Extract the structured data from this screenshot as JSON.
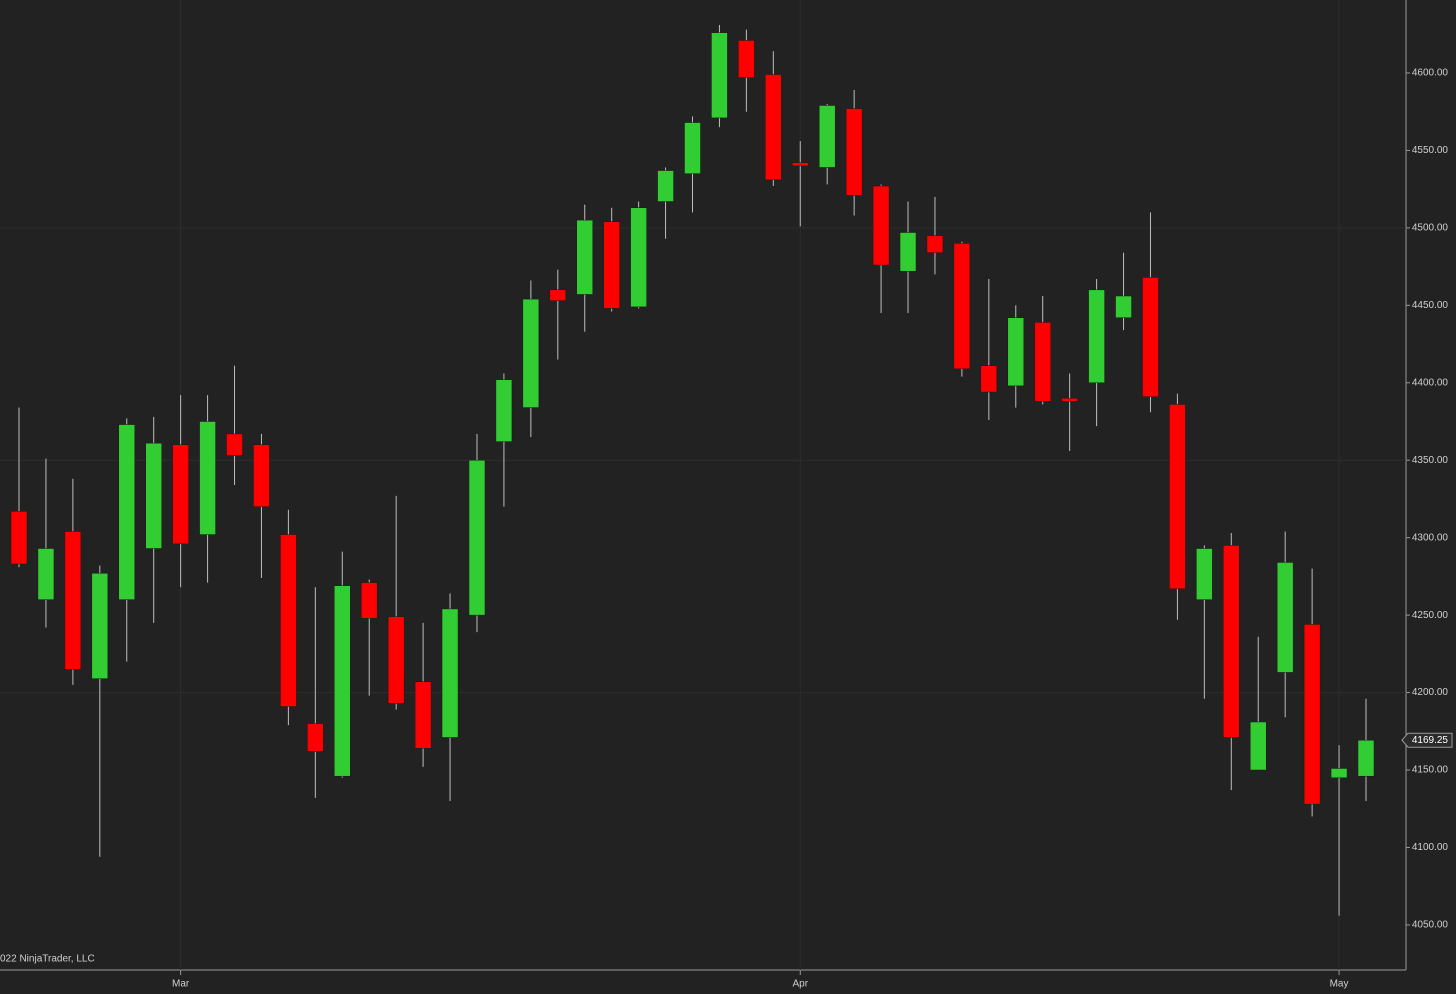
{
  "chart_data": {
    "type": "candlestick",
    "categories": [
      null,
      null,
      null,
      null,
      null,
      null,
      "Mar",
      null,
      null,
      null,
      null,
      null,
      null,
      null,
      null,
      null,
      null,
      null,
      null,
      null,
      null,
      null,
      null,
      null,
      null,
      null,
      null,
      null,
      null,
      "Apr",
      null,
      null,
      null,
      null,
      null,
      null,
      null,
      null,
      null,
      null,
      null,
      null,
      null,
      null,
      null,
      null,
      null,
      null,
      null,
      "May",
      null
    ],
    "open": [
      4317,
      4260,
      4304,
      4209,
      4260,
      4293,
      4360,
      4302,
      4367,
      4360,
      4302,
      4180,
      4146,
      4271,
      4249,
      4207,
      4171,
      4250,
      4362,
      4384,
      4460,
      4457,
      4504,
      4449,
      4517,
      4535,
      4571,
      4621,
      4599,
      4542,
      4539,
      4577,
      4527,
      4472,
      4495,
      4490,
      4411,
      4398,
      4439,
      4390,
      4400,
      4442,
      4468,
      4386,
      4260,
      4295,
      4150,
      4213,
      4244,
      4145,
      4146
    ],
    "high": [
      4384,
      4351,
      4338,
      4282,
      4377,
      4378,
      4392,
      4392,
      4411,
      4367,
      4318,
      4268,
      4291,
      4273,
      4327,
      4245,
      4264,
      4367,
      4406,
      4466,
      4473,
      4515,
      4513,
      4517,
      4539,
      4572,
      4631,
      4628,
      4614,
      4556,
      4580,
      4589,
      4528,
      4517,
      4520,
      4491,
      4467,
      4450,
      4456,
      4406,
      4467,
      4484,
      4510,
      4393,
      4295,
      4303,
      4236,
      4304,
      4280,
      4166,
      4196
    ],
    "low": [
      4281,
      4242,
      4205,
      4094,
      4220,
      4245,
      4268,
      4271,
      4334,
      4274,
      4179,
      4132,
      4145,
      4198,
      4189,
      4152,
      4130,
      4239,
      4320,
      4365,
      4415,
      4433,
      4446,
      4448,
      4493,
      4510,
      4565,
      4575,
      4527,
      4501,
      4528,
      4508,
      4445,
      4445,
      4470,
      4404,
      4376,
      4384,
      4386,
      4356,
      4372,
      4434,
      4381,
      4247,
      4196,
      4137,
      4150,
      4184,
      4120,
      4056,
      4130
    ],
    "close": [
      4283,
      4293,
      4215,
      4277,
      4373,
      4361,
      4296,
      4375,
      4353,
      4320,
      4191,
      4162,
      4269,
      4248,
      4193,
      4164,
      4254,
      4350,
      4402,
      4454,
      4453,
      4505,
      4448,
      4513,
      4537,
      4568,
      4626,
      4597,
      4531,
      4540,
      4579,
      4521,
      4476,
      4497,
      4484,
      4409,
      4394,
      4442,
      4388,
      4388,
      4460,
      4456,
      4391,
      4267,
      4293,
      4171,
      4181,
      4284,
      4128,
      4151,
      4169.25
    ],
    "up_color": "#32cd32",
    "down_color": "#ff0000",
    "last_price_label": "4169.25",
    "ylim": [
      4020.9,
      4647.1
    ],
    "yticks": [
      {
        "value": 4050,
        "label": "4050.00"
      },
      {
        "value": 4100,
        "label": "4100.00"
      },
      {
        "value": 4150,
        "label": "4150.00"
      },
      {
        "value": 4200,
        "label": "4200.00"
      },
      {
        "value": 4250,
        "label": "4250.00"
      },
      {
        "value": 4300,
        "label": "4300.00"
      },
      {
        "value": 4350,
        "label": "4350.00"
      },
      {
        "value": 4400,
        "label": "4400.00"
      },
      {
        "value": 4450,
        "label": "4450.00"
      },
      {
        "value": 4500,
        "label": "4500.00"
      },
      {
        "value": 4550,
        "label": "4550.00"
      },
      {
        "value": 4600,
        "label": "4600.00"
      }
    ],
    "copyright": "022 NinjaTrader, LLC",
    "grid": true
  }
}
